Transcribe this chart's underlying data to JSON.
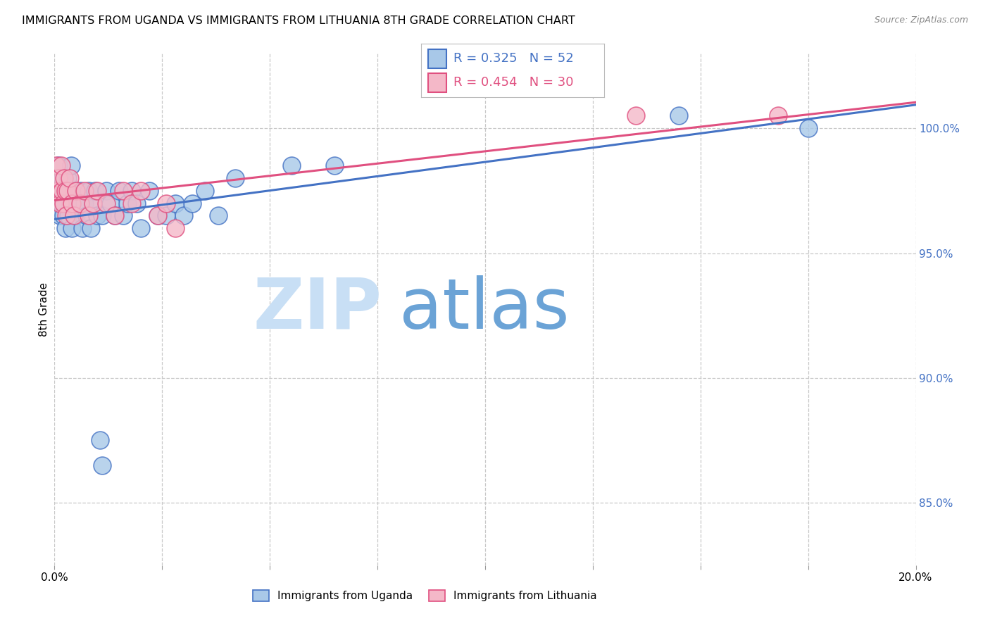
{
  "title": "IMMIGRANTS FROM UGANDA VS IMMIGRANTS FROM LITHUANIA 8TH GRADE CORRELATION CHART",
  "source": "Source: ZipAtlas.com",
  "ylabel": "8th Grade",
  "ylabel_right_ticks": [
    85.0,
    90.0,
    95.0,
    100.0
  ],
  "xlim": [
    0.0,
    20.0
  ],
  "ylim": [
    82.5,
    103.0
  ],
  "uganda_R": 0.325,
  "uganda_N": 52,
  "lithuania_R": 0.454,
  "lithuania_N": 30,
  "uganda_color": "#a8c8e8",
  "uganda_line_color": "#4472c4",
  "lithuania_color": "#f4b8c8",
  "lithuania_line_color": "#e05080",
  "watermark_zip_color": "#c8dff5",
  "watermark_atlas_color": "#6ba3d6",
  "grid_color": "#c8c8c8",
  "uganda_x": [
    0.05,
    0.08,
    0.1,
    0.12,
    0.15,
    0.18,
    0.2,
    0.22,
    0.25,
    0.28,
    0.3,
    0.32,
    0.35,
    0.38,
    0.4,
    0.45,
    0.5,
    0.55,
    0.6,
    0.65,
    0.7,
    0.75,
    0.8,
    0.85,
    0.9,
    0.95,
    1.0,
    1.1,
    1.2,
    1.3,
    1.4,
    1.5,
    1.6,
    1.7,
    1.8,
    1.9,
    2.0,
    2.2,
    2.4,
    2.6,
    2.8,
    3.0,
    3.2,
    3.5,
    3.8,
    4.2,
    5.5,
    6.5,
    1.05,
    1.1,
    14.5,
    17.5
  ],
  "uganda_y": [
    97.5,
    97.0,
    98.5,
    96.5,
    97.0,
    98.0,
    96.5,
    97.5,
    96.0,
    97.5,
    98.0,
    96.5,
    97.0,
    98.5,
    96.0,
    97.5,
    96.5,
    97.0,
    97.5,
    96.0,
    97.0,
    96.5,
    97.5,
    96.0,
    97.0,
    97.5,
    96.5,
    96.5,
    97.5,
    97.0,
    96.5,
    97.5,
    96.5,
    97.0,
    97.5,
    97.0,
    96.0,
    97.5,
    96.5,
    96.5,
    97.0,
    96.5,
    97.0,
    97.5,
    96.5,
    98.0,
    98.5,
    98.5,
    87.5,
    86.5,
    100.5,
    100.0
  ],
  "lithuania_x": [
    0.05,
    0.08,
    0.1,
    0.12,
    0.15,
    0.18,
    0.2,
    0.22,
    0.25,
    0.28,
    0.3,
    0.35,
    0.4,
    0.45,
    0.5,
    0.6,
    0.7,
    0.8,
    0.9,
    1.0,
    1.2,
    1.4,
    1.6,
    1.8,
    2.0,
    2.4,
    2.6,
    2.8,
    13.5,
    16.8
  ],
  "lithuania_y": [
    98.5,
    97.5,
    98.0,
    97.0,
    98.5,
    97.5,
    97.0,
    98.0,
    97.5,
    96.5,
    97.5,
    98.0,
    97.0,
    96.5,
    97.5,
    97.0,
    97.5,
    96.5,
    97.0,
    97.5,
    97.0,
    96.5,
    97.5,
    97.0,
    97.5,
    96.5,
    97.0,
    96.0,
    100.5,
    100.5
  ],
  "xticks": [
    0.0,
    2.5,
    5.0,
    7.5,
    10.0,
    12.5,
    15.0,
    17.5,
    20.0
  ],
  "yticks_left_hidden": true
}
